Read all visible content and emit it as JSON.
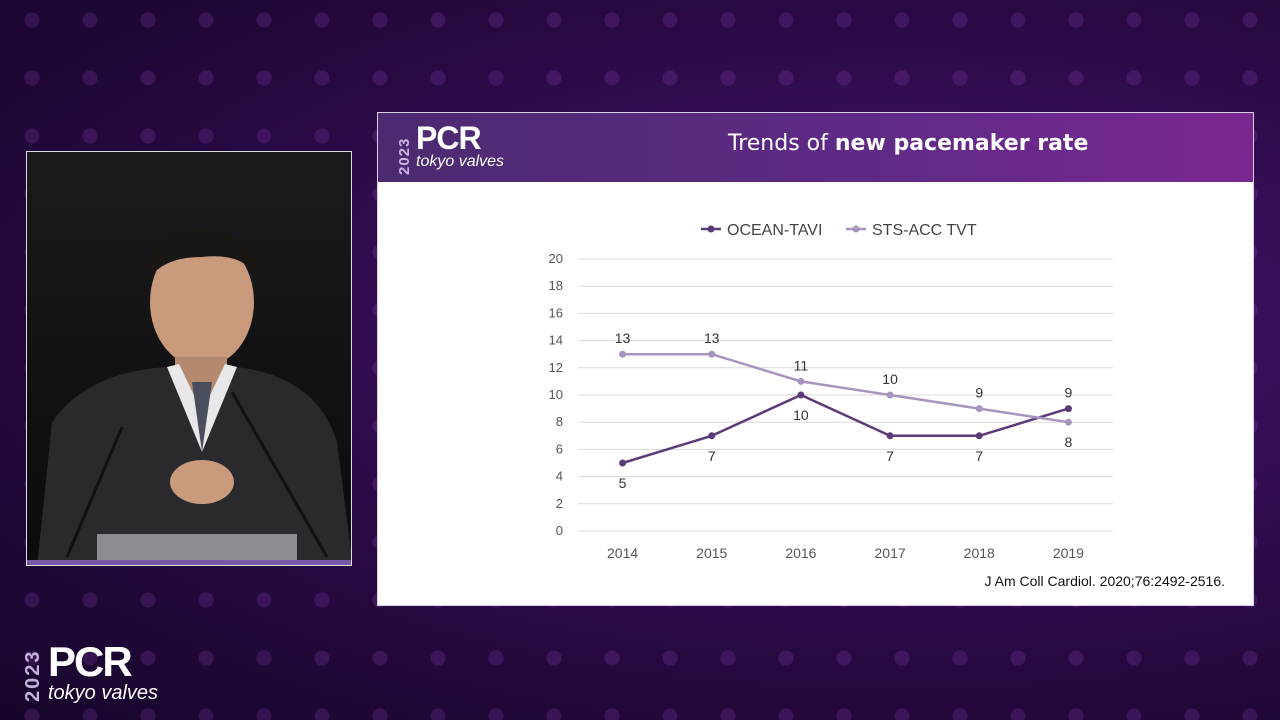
{
  "slide": {
    "title_prefix": "Trends of ",
    "title_bold": "new pacemaker rate",
    "citation": "J Am Coll Cardiol. 2020;76:2492-2516."
  },
  "branding": {
    "year": "2023",
    "name": "PCR",
    "tagline": "tokyo valves"
  },
  "colors": {
    "header_purple": "#5e2a86",
    "ocean_series": "#5b3a78",
    "sts_series": "#a795c0"
  },
  "chart_data": {
    "type": "line",
    "title": "",
    "xlabel": "",
    "ylabel": "",
    "x": [
      "2014",
      "2015",
      "2016",
      "2017",
      "2018",
      "2019"
    ],
    "ylim": [
      0,
      20
    ],
    "yticks": [
      0,
      2,
      4,
      6,
      8,
      10,
      12,
      14,
      16,
      18,
      20
    ],
    "grid": true,
    "legend_position": "top",
    "series": [
      {
        "name": "OCEAN-TAVI",
        "values": [
          5,
          7,
          10,
          7,
          7,
          9
        ],
        "labels": [
          "5",
          "7",
          "10",
          "7",
          "7",
          "9"
        ]
      },
      {
        "name": "STS-ACC TVT",
        "values": [
          13,
          13,
          11,
          10,
          9,
          8
        ],
        "labels": [
          "13",
          "13",
          "11",
          "10",
          "9",
          "8"
        ]
      }
    ]
  }
}
